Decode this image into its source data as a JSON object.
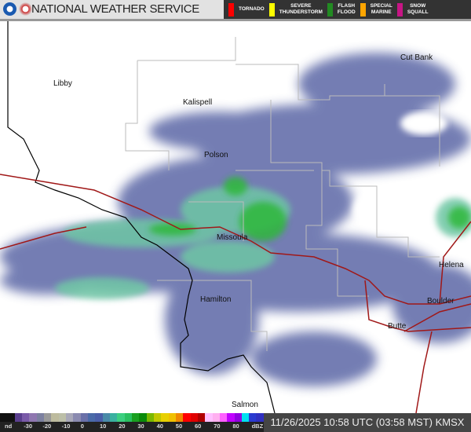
{
  "header": {
    "title": "NATIONAL WEATHER SERVICE",
    "logos": [
      "noaa-logo",
      "nws-logo"
    ],
    "warnings": [
      {
        "label": "TORNADO",
        "color": "#ff0000"
      },
      {
        "label": "SEVERE\nTHUNDERSTORM",
        "color": "#ffff00"
      },
      {
        "label": "FLASH\nFLOOD",
        "color": "#228b22"
      },
      {
        "label": "SPECIAL\nMARINE",
        "color": "#ffa500"
      },
      {
        "label": "SNOW\nSQUALL",
        "color": "#c71585"
      }
    ]
  },
  "map": {
    "cities": [
      "Libby",
      "Kalispell",
      "Polson",
      "Missoula",
      "Hamilton",
      "Cut Bank",
      "Helena",
      "Boulder",
      "Butte",
      "Salmon"
    ]
  },
  "scale": {
    "ticks": [
      "nd",
      "-30",
      "-20",
      "-10",
      "0",
      "10",
      "20",
      "30",
      "40",
      "50",
      "60",
      "70",
      "80",
      "dBZ"
    ],
    "colors": [
      "#111",
      "#111",
      "#5a3f8e",
      "#7a5aa8",
      "#8f77b0",
      "#7c80a0",
      "#999",
      "#bdbb9e",
      "#bcbfa8",
      "#a8a8b8",
      "#8a8ab0",
      "#6a70a8",
      "#4a6aa8",
      "#4a5ea8",
      "#4a8aa8",
      "#3ab0a0",
      "#3ccf80",
      "#2ac060",
      "#1aa020",
      "#0a8a0a",
      "#7ab800",
      "#c0c800",
      "#e8d000",
      "#f0c000",
      "#f08800",
      "#ff0000",
      "#e00000",
      "#b00000",
      "#ffc0ff",
      "#ffb0f0",
      "#ff60ff",
      "#c000ff",
      "#9000e0",
      "#00e0f0",
      "#2a3ad0",
      "#3030c0"
    ]
  },
  "timestamp": "11/26/2025 10:58 UTC (03:58 MST) KMSX"
}
